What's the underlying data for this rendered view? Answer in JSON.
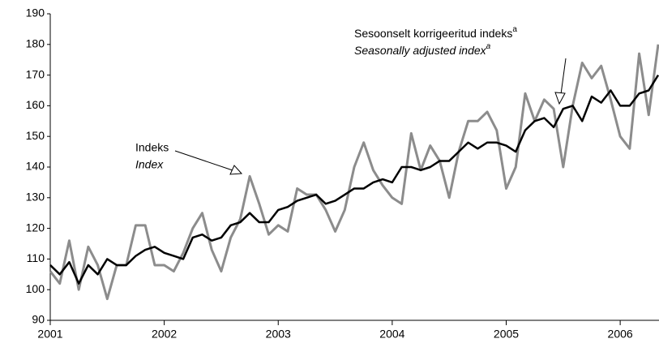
{
  "chart_data": {
    "type": "line",
    "categories": [
      "2001",
      null,
      null,
      null,
      null,
      null,
      null,
      null,
      null,
      null,
      null,
      null,
      "2002",
      null,
      null,
      null,
      null,
      null,
      null,
      null,
      null,
      null,
      null,
      null,
      "2003",
      null,
      null,
      null,
      null,
      null,
      null,
      null,
      null,
      null,
      null,
      null,
      "2004",
      null,
      null,
      null,
      null,
      null,
      null,
      null,
      null,
      null,
      null,
      null,
      "2005",
      null,
      null,
      null,
      null,
      null,
      null,
      null,
      null,
      null,
      null,
      null,
      "2006",
      null,
      null,
      null,
      null
    ],
    "series": [
      {
        "color": "#8c8c8c",
        "values": [
          106,
          102,
          116,
          100,
          114,
          108,
          97,
          108,
          108,
          121,
          121,
          108,
          108,
          106,
          112,
          120,
          125,
          113,
          106,
          117,
          123,
          137,
          128,
          118,
          121,
          119,
          133,
          131,
          131,
          126,
          119,
          126,
          140,
          148,
          139,
          134,
          130,
          128,
          151,
          139,
          147,
          142,
          130,
          145,
          155,
          155,
          158,
          152,
          133,
          140,
          164,
          155,
          162,
          159,
          140,
          160,
          174,
          169,
          173,
          162,
          150,
          146,
          177,
          157,
          180
        ]
      },
      {
        "color": "#000000",
        "values": [
          108,
          105,
          109,
          102,
          108,
          105,
          110,
          108,
          108,
          111,
          113,
          114,
          112,
          111,
          110,
          117,
          118,
          116,
          117,
          121,
          122,
          125,
          122,
          122,
          126,
          127,
          129,
          130,
          131,
          128,
          129,
          131,
          133,
          133,
          135,
          136,
          135,
          140,
          140,
          139,
          140,
          142,
          142,
          145,
          148,
          146,
          148,
          148,
          147,
          145,
          152,
          155,
          156,
          153,
          159,
          160,
          155,
          163,
          161,
          165,
          160,
          160,
          164,
          165,
          170
        ]
      }
    ],
    "ylim": [
      90,
      190
    ],
    "yticks": [
      90,
      100,
      110,
      120,
      130,
      140,
      150,
      160,
      170,
      180,
      190
    ],
    "grid": false,
    "annotations": [
      {
        "text": "Indeks",
        "text2": "Index"
      },
      {
        "text": "Sesoonselt korrigeeritud indeks",
        "sup": "a",
        "text2": "Seasonally adjusted index",
        "sup2": "a"
      }
    ]
  }
}
